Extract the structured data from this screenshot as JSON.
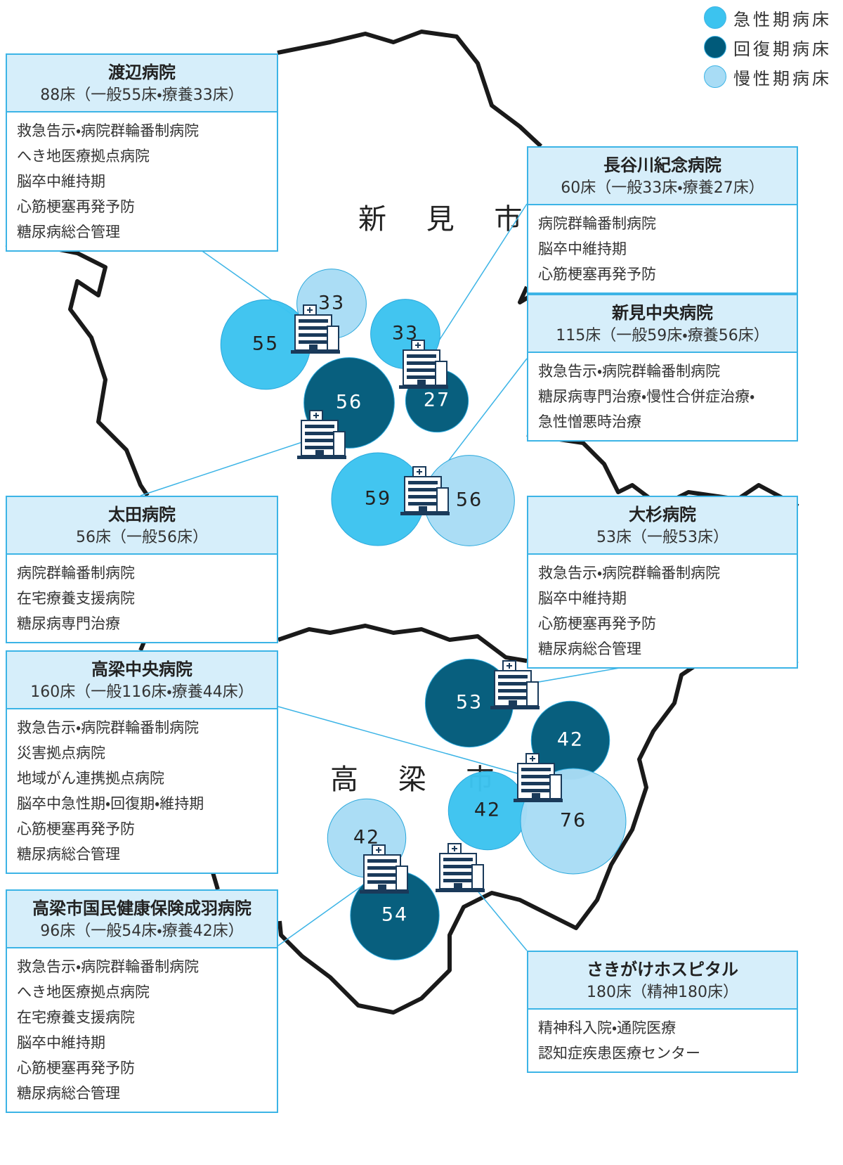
{
  "legend": [
    {
      "label": "急性期病床",
      "color": "#3cc3ef"
    },
    {
      "label": "回復期病床",
      "color": "#005a7a"
    },
    {
      "label": "慢性期病床",
      "color": "#a8dcf5"
    }
  ],
  "cities": [
    "新 見 市",
    "高 梁 市"
  ],
  "hospitals": [
    {
      "name": "渡辺病院",
      "beds": "88床（一般55床・療養33床）",
      "services": [
        "救急告示・病院群輪番制病院",
        "へき地医療拠点病院",
        "脳卒中維持期",
        "心筋梗塞再発予防",
        "糖尿病総合管理"
      ],
      "bubbles": [
        {
          "value": 55,
          "color": "#3cc3ef"
        },
        {
          "value": 33,
          "color": "#a8dcf5"
        }
      ]
    },
    {
      "name": "長谷川紀念病院",
      "beds": "60床（一般33床・療養27床）",
      "services": [
        "病院群輪番制病院",
        "脳卒中維持期",
        "心筋梗塞再発予防"
      ],
      "bubbles": [
        {
          "value": 33,
          "color": "#3cc3ef"
        },
        {
          "value": 27,
          "color": "#005a7a"
        }
      ]
    },
    {
      "name": "新見中央病院",
      "beds": "115床（一般59床・療養56床）",
      "services": [
        "救急告示・病院群輪番制病院",
        "糖尿病専門治療・慢性合併症治療・",
        "急性憎悪時治療"
      ],
      "bubbles": [
        {
          "value": 59,
          "color": "#3cc3ef"
        },
        {
          "value": 56,
          "color": "#a8dcf5"
        }
      ]
    },
    {
      "name": "太田病院",
      "beds": "56床（一般56床）",
      "services": [
        "病院群輪番制病院",
        "在宅療養支援病院",
        "糖尿病専門治療"
      ],
      "bubbles": [
        {
          "value": 56,
          "color": "#005a7a"
        }
      ]
    },
    {
      "name": "大杉病院",
      "beds": "53床（一般53床）",
      "services": [
        "救急告示・病院群輪番制病院",
        "脳卒中維持期",
        "心筋梗塞再発予防",
        "糖尿病総合管理"
      ],
      "bubbles": [
        {
          "value": 53,
          "color": "#005a7a"
        }
      ]
    },
    {
      "name": "高梁中央病院",
      "beds": "160床（一般116床・療養44床）",
      "services": [
        "救急告示・病院群輪番制病院",
        "災害拠点病院",
        "地域がん連携拠点病院",
        "脳卒中急性期・回復期・維持期",
        "心筋梗塞再発予防",
        "糖尿病総合管理"
      ],
      "bubbles": [
        {
          "value": 42,
          "color": "#005a7a"
        },
        {
          "value": 42,
          "color": "#3cc3ef"
        },
        {
          "value": 76,
          "color": "#a8dcf5"
        }
      ]
    },
    {
      "name": "高梁市国民健康保険成羽病院",
      "beds": "96床（一般54床・療養42床）",
      "services": [
        "救急告示・病院群輪番制病院",
        "へき地医療拠点病院",
        "在宅療養支援病院",
        "脳卒中維持期",
        "心筋梗塞再発予防",
        "糖尿病総合管理"
      ],
      "bubbles": [
        {
          "value": 42,
          "color": "#a8dcf5"
        },
        {
          "value": 54,
          "color": "#005a7a"
        }
      ]
    },
    {
      "name": "さきがけホスピタル",
      "beds": "180床（精神180床）",
      "services": [
        "精神科入院・通院医療",
        "認知症疾患医療センター"
      ],
      "bubbles": []
    }
  ]
}
